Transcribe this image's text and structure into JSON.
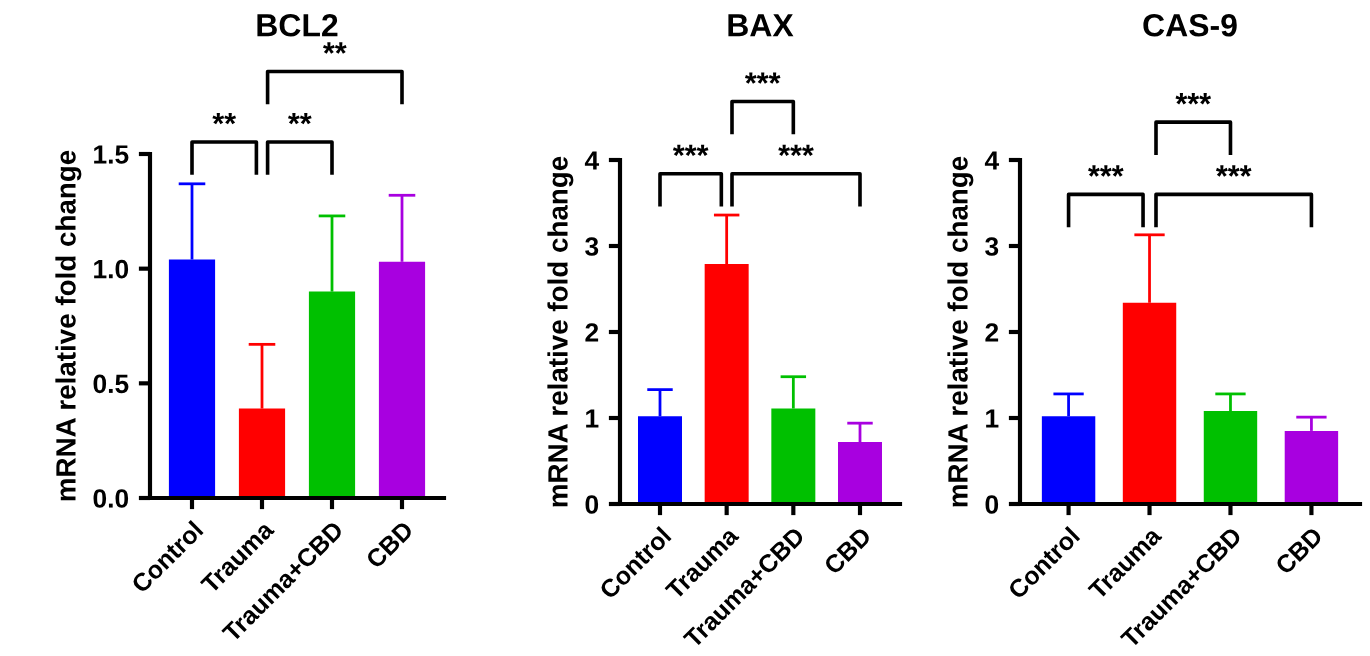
{
  "chart_data": [
    {
      "type": "bar",
      "title": "BCL2",
      "ylabel": "mRNA relative fold change",
      "categories": [
        "Control",
        "Trauma",
        "Trauma+CBD",
        "CBD"
      ],
      "colors": [
        "#0000ff",
        "#ff0000",
        "#00c000",
        "#a800e0"
      ],
      "values": [
        1.04,
        0.39,
        0.9,
        1.03
      ],
      "errors": [
        [
          1.04,
          1.37
        ],
        [
          0.39,
          0.67
        ],
        [
          0.9,
          1.23
        ],
        [
          1.03,
          1.32
        ]
      ],
      "ylim": [
        0,
        1.5
      ],
      "yticks": [
        {
          "value": 0,
          "label": "0.0"
        },
        0.5,
        {
          "value": 1,
          "label": "1.0"
        },
        1.5
      ],
      "grid": false,
      "annotations": [
        "**",
        "**",
        "**"
      ]
    },
    {
      "type": "bar",
      "title": "BAX",
      "ylabel": "mRNA relative fold change",
      "categories": [
        "Control",
        "Trauma",
        "Trauma+CBD",
        "CBD"
      ],
      "colors": [
        "#0000ff",
        "#ff0000",
        "#00c000",
        "#a800e0"
      ],
      "values": [
        1.02,
        2.79,
        1.11,
        0.72
      ],
      "errors": [
        [
          1.02,
          1.33
        ],
        [
          2.79,
          3.36
        ],
        [
          1.11,
          1.48
        ],
        [
          0.72,
          0.94
        ]
      ],
      "ylim": [
        0,
        4
      ],
      "yticks": [
        0,
        1,
        2,
        3,
        4
      ],
      "grid": false,
      "annotations": [
        "***",
        "***",
        "***"
      ]
    },
    {
      "type": "bar",
      "title": "CAS-9",
      "ylabel": "mRNA relative fold change",
      "categories": [
        "Control",
        "Trauma",
        "Trauma+CBD",
        "CBD"
      ],
      "colors": [
        "#0000ff",
        "#ff0000",
        "#00c000",
        "#a800e0"
      ],
      "values": [
        1.02,
        2.34,
        1.08,
        0.85
      ],
      "errors": [
        [
          1.02,
          1.28
        ],
        [
          2.34,
          3.13
        ],
        [
          1.08,
          1.28
        ],
        [
          0.85,
          1.01
        ]
      ],
      "ylim": [
        0,
        4
      ],
      "yticks": [
        0,
        1,
        2,
        3,
        4
      ],
      "grid": false,
      "annotations": [
        "***",
        "***",
        "***"
      ]
    }
  ]
}
